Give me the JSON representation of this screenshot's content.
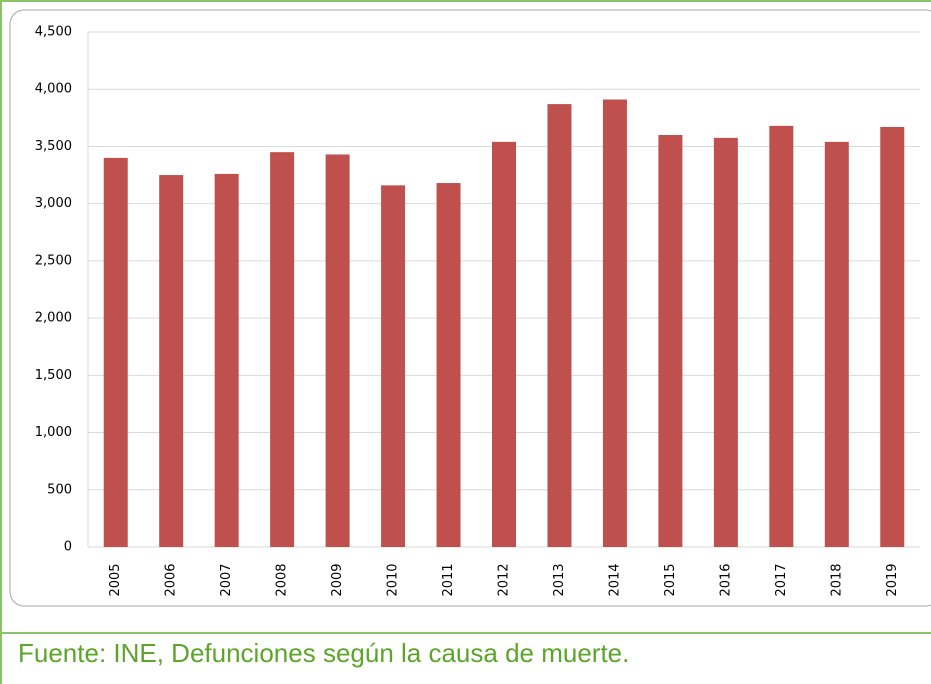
{
  "chart_data": {
    "type": "bar",
    "categories": [
      "2005",
      "2006",
      "2007",
      "2008",
      "2009",
      "2010",
      "2011",
      "2012",
      "2013",
      "2014",
      "2015",
      "2016",
      "2017",
      "2018",
      "2019"
    ],
    "values": [
      3400,
      3250,
      3260,
      3450,
      3430,
      3160,
      3180,
      3540,
      3870,
      3910,
      3600,
      3575,
      3680,
      3540,
      3670
    ],
    "color": "#c0504d",
    "ylim": [
      0,
      4500
    ],
    "yticks": [
      0,
      500,
      {
        "value": 1000,
        "label": "1,000"
      },
      {
        "value": 1500,
        "label": "1,500"
      },
      {
        "value": 2000,
        "label": "2,000"
      },
      {
        "value": 2500,
        "label": "2,500"
      },
      {
        "value": 3000,
        "label": "3,000"
      },
      {
        "value": 3500,
        "label": "3,500"
      },
      {
        "value": 4000,
        "label": "4,000"
      },
      {
        "value": 4500,
        "label": "4,500"
      }
    ],
    "grid": true,
    "source": "Fuente: INE, Defunciones según la causa de muerte."
  }
}
